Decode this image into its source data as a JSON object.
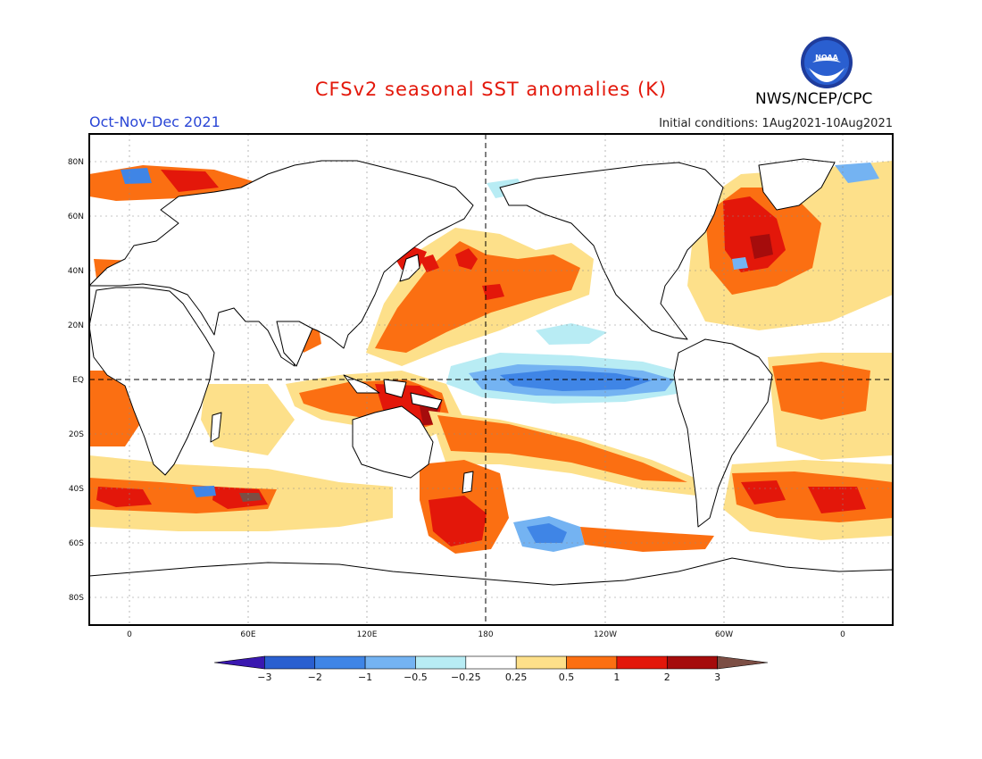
{
  "header": {
    "title": "CFSv2 seasonal SST anomalies (K)",
    "season": "Oct-Nov-Dec 2021",
    "initial_conditions": "Initial conditions: 1Aug2021-10Aug2021",
    "organization": "NWS/NCEP/CPC",
    "logo_text": "NOAA"
  },
  "axes": {
    "lat_labels": [
      "80N",
      "60N",
      "40N",
      "20N",
      "EQ",
      "20S",
      "40S",
      "60S",
      "80S"
    ],
    "lon_labels": [
      "0",
      "60E",
      "120E",
      "180",
      "120W",
      "60W",
      "0"
    ]
  },
  "colorbar": {
    "labels": [
      "-3",
      "-2",
      "-1",
      "-0.5",
      "-0.25",
      "0.25",
      "0.5",
      "1",
      "2",
      "3"
    ],
    "colors": [
      "#3a18b0",
      "#2a5fd0",
      "#3f85e6",
      "#74b3f2",
      "#b8ecf4",
      "#ffffff",
      "#fde08a",
      "#fb6f12",
      "#e3170a",
      "#a50c0c",
      "#7c4e44"
    ]
  },
  "colors": {
    "warm_light": "#fde08a",
    "warm": "#fb6f12",
    "warm_strong": "#e3170a",
    "warm_extreme": "#a50c0c",
    "cool_light": "#b8ecf4",
    "cool": "#74b3f2",
    "cool_strong": "#3f85e6",
    "land": "#ffffff"
  }
}
